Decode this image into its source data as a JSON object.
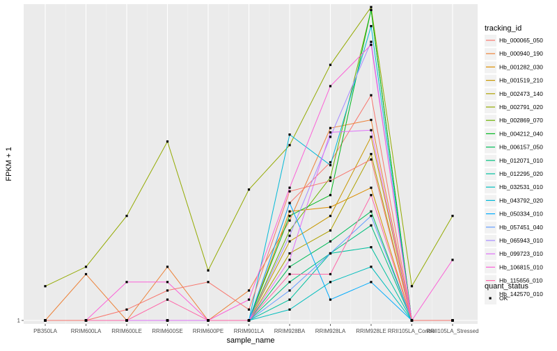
{
  "chart_data": {
    "type": "line",
    "xlabel": "sample_name",
    "ylabel": "FPKM + 1",
    "y_tick_labels": [
      "1"
    ],
    "categories": [
      "PB350LA",
      "RRIM600LA",
      "RRIM600LE",
      "RRIM600SE",
      "RRIM600PE",
      "RRIM901LA",
      "RRIM928BA",
      "RRIM928LA",
      "RRIM928LE",
      "RRII105LA_Control",
      "RRII105LA_Stressed"
    ],
    "ylim": [
      0.97,
      16.0
    ],
    "grid": true,
    "legend_position": "right",
    "legend_title": "tracking_id",
    "legend2_title": "quant_status",
    "legend2_entries": [
      "OK"
    ],
    "background": "#EBEBEB",
    "series": [
      {
        "name": "Hb_000065_050",
        "color": "#F8766D",
        "values": [
          1,
          1,
          1,
          1,
          1,
          1,
          2.8,
          4.0,
          7.2,
          1,
          1
        ]
      },
      {
        "name": "Hb_000940_190",
        "color": "#EC8239",
        "values": [
          1,
          1.5,
          1,
          1.6,
          1,
          1.3,
          2.4,
          5.4,
          5.8,
          1,
          1
        ]
      },
      {
        "name": "Hb_001282_030",
        "color": "#DB8E00",
        "values": [
          1,
          1,
          1,
          1,
          1,
          1,
          2.6,
          2.7,
          3.2,
          1,
          1
        ]
      },
      {
        "name": "Hb_001519_210",
        "color": "#C79800",
        "values": [
          1,
          1,
          1,
          1,
          1,
          1,
          2.0,
          2.5,
          5.0,
          1,
          1
        ]
      },
      {
        "name": "Hb_002473_140",
        "color": "#AFA100",
        "values": [
          1,
          1,
          1,
          1,
          1,
          1,
          1.8,
          2.2,
          4.3,
          1,
          1
        ]
      },
      {
        "name": "Hb_002791_020",
        "color": "#93AA00",
        "values": [
          1.35,
          1.6,
          2.5,
          4.8,
          1.55,
          3.15,
          4.65,
          9.4,
          15.6,
          1.35,
          2.5
        ]
      },
      {
        "name": "Hb_002869_070",
        "color": "#6BB100",
        "values": [
          1,
          1,
          1,
          1,
          1,
          1,
          2.2,
          3.5,
          15.2,
          1,
          1
        ]
      },
      {
        "name": "Hb_004212_040",
        "color": "#00B81F",
        "values": [
          1,
          1,
          1,
          1,
          1,
          1,
          2.5,
          3.0,
          15.2,
          1,
          1
        ]
      },
      {
        "name": "Hb_006157_050",
        "color": "#00BC59",
        "values": [
          1,
          1,
          1,
          1,
          1,
          1,
          1.6,
          2.0,
          2.6,
          1,
          1
        ]
      },
      {
        "name": "Hb_012071_010",
        "color": "#00BF7D",
        "values": [
          1,
          1,
          1,
          1,
          1,
          1,
          1.4,
          1.8,
          2.3,
          1,
          1
        ]
      },
      {
        "name": "Hb_012295_020",
        "color": "#00C09F",
        "values": [
          1,
          1,
          1,
          1,
          1,
          1,
          1.2,
          1.8,
          1.9,
          1,
          1
        ]
      },
      {
        "name": "Hb_032531_010",
        "color": "#00BDBD",
        "values": [
          1,
          1,
          1,
          1,
          1,
          1,
          1.1,
          1.4,
          1.6,
          1,
          1
        ]
      },
      {
        "name": "Hb_043792_020",
        "color": "#00B8D7",
        "values": [
          1,
          1,
          1,
          1,
          1,
          1,
          5.1,
          3.9,
          13.2,
          1,
          1
        ]
      },
      {
        "name": "Hb_050334_010",
        "color": "#00ABFD",
        "values": [
          1,
          1,
          1,
          1,
          1,
          1,
          2.8,
          1.2,
          1.4,
          1,
          1
        ]
      },
      {
        "name": "Hb_057451_040",
        "color": "#619CFF",
        "values": [
          1,
          1,
          1,
          1,
          1,
          1,
          1.3,
          1.8,
          2.5,
          1,
          1
        ]
      },
      {
        "name": "Hb_065943_010",
        "color": "#A58AFF",
        "values": [
          1,
          1,
          1,
          1,
          1,
          1,
          2.1,
          5.0,
          11.5,
          1,
          1
        ]
      },
      {
        "name": "Hb_099723_010",
        "color": "#DF70F8",
        "values": [
          1,
          1,
          1,
          1,
          1,
          1,
          1.7,
          5.2,
          5.3,
          1,
          1
        ]
      },
      {
        "name": "Hb_106815_010",
        "color": "#FB61D7",
        "values": [
          1,
          1,
          1.4,
          1.4,
          1,
          1.2,
          3.2,
          7.8,
          11.2,
          1,
          1.7
        ]
      },
      {
        "name": "Hb_115656_010",
        "color": "#FF66A8",
        "values": [
          1,
          1,
          1,
          1.2,
          1,
          1,
          1.5,
          1.5,
          3.0,
          1,
          1
        ]
      },
      {
        "name": "Hb_142570_010",
        "color": "#F8766D",
        "values": [
          1,
          1,
          1.1,
          1.3,
          1.4,
          1.1,
          3.1,
          3.4,
          4.1,
          1,
          1
        ]
      }
    ]
  }
}
